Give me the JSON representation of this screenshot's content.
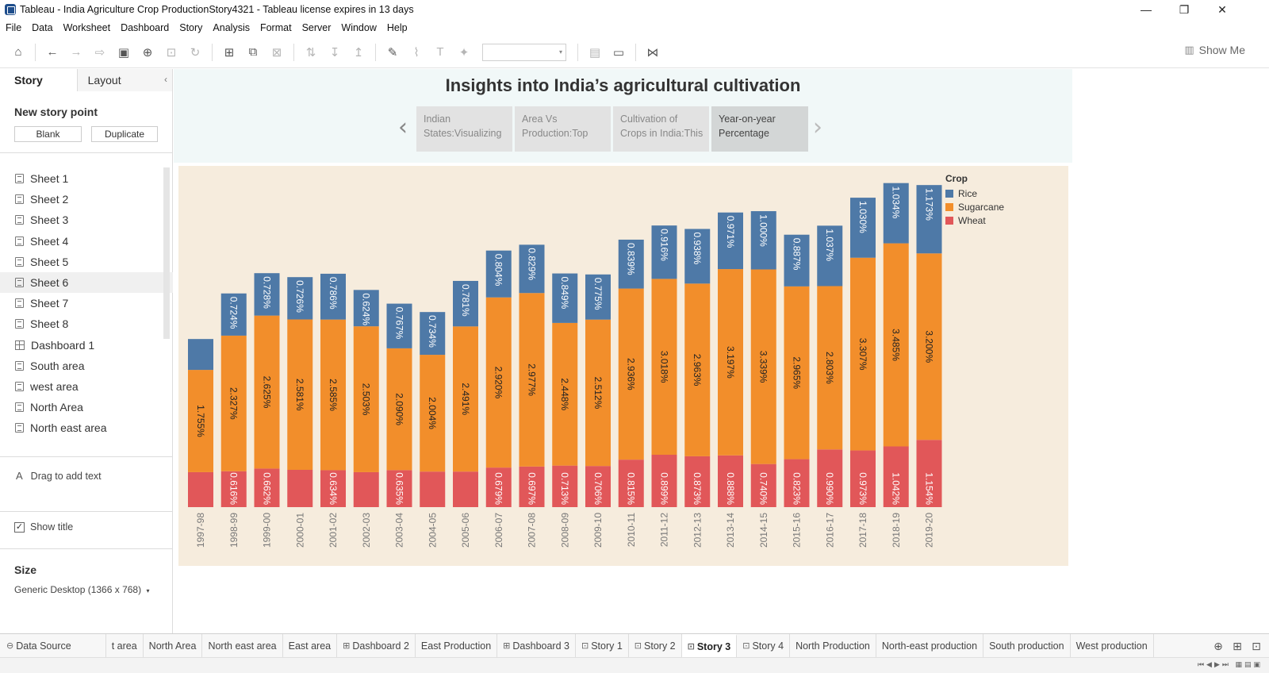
{
  "window": {
    "title": "Tableau - India Agriculture Crop ProductionStory4321 - Tableau license expires in 13 days",
    "minimize": "—",
    "restore": "❐",
    "close": "✕"
  },
  "menu": [
    "File",
    "Data",
    "Worksheet",
    "Dashboard",
    "Story",
    "Analysis",
    "Format",
    "Server",
    "Window",
    "Help"
  ],
  "toolbar": {
    "show_me": "Show Me"
  },
  "left_panel": {
    "tab_story": "Story",
    "tab_layout": "Layout",
    "new_story_point": "New story point",
    "blank_button": "Blank",
    "duplicate_button": "Duplicate",
    "sheets": [
      {
        "label": "Sheet 1",
        "type": "sheet"
      },
      {
        "label": "Sheet 2",
        "type": "sheet"
      },
      {
        "label": "Sheet 3",
        "type": "sheet"
      },
      {
        "label": "Sheet 4",
        "type": "sheet"
      },
      {
        "label": "Sheet 5",
        "type": "sheet"
      },
      {
        "label": "Sheet 6",
        "type": "sheet"
      },
      {
        "label": "Sheet 7",
        "type": "sheet"
      },
      {
        "label": "Sheet 8",
        "type": "sheet"
      },
      {
        "label": "Dashboard 1",
        "type": "dashboard"
      },
      {
        "label": "South area",
        "type": "sheet"
      },
      {
        "label": "west area",
        "type": "sheet"
      },
      {
        "label": "North Area",
        "type": "sheet"
      },
      {
        "label": "North east area",
        "type": "sheet"
      }
    ],
    "drag_text": "Drag to add text",
    "show_title": "Show title",
    "size_heading": "Size",
    "size_value": "Generic Desktop (1366 x 768)"
  },
  "story": {
    "title": "Insights into India’s agricultural cultivation",
    "points": [
      {
        "line1": "Indian",
        "line2": "States:Visualizing"
      },
      {
        "line1": "Area Vs",
        "line2": "Production:Top"
      },
      {
        "line1": "Cultivation of",
        "line2": "Crops in India:This"
      },
      {
        "line1": "Year-on-year",
        "line2": "Percentage"
      }
    ]
  },
  "chart_data": {
    "type": "bar",
    "stacked": true,
    "legend_title": "Crop",
    "legend_position": "top-right",
    "categories": [
      "1997-98",
      "1998-99",
      "1999-00",
      "2000-01",
      "2001-02",
      "2002-03",
      "2003-04",
      "2004-05",
      "2005-06",
      "2006-07",
      "2007-08",
      "2008-09",
      "2009-10",
      "2010-11",
      "2011-12",
      "2012-13",
      "2013-14",
      "2014-15",
      "2015-16",
      "2016-17",
      "2017-18",
      "2018-19",
      "2019-20"
    ],
    "series": [
      {
        "name": "Wheat",
        "color": "#e15759",
        "values": [
          0.6,
          0.616,
          0.662,
          0.64,
          0.634,
          0.6,
          0.635,
          0.61,
          0.61,
          0.679,
          0.697,
          0.713,
          0.706,
          0.815,
          0.899,
          0.873,
          0.888,
          0.74,
          0.823,
          0.99,
          0.973,
          1.042,
          1.154
        ],
        "labels": [
          "",
          "0.616%",
          "0.662%",
          "",
          "0.634%",
          "",
          "0.635%",
          "",
          "",
          "0.679%",
          "0.697%",
          "0.713%",
          "0.706%",
          "0.815%",
          "0.899%",
          "0.873%",
          "0.888%",
          "0.740%",
          "0.823%",
          "0.990%",
          "0.973%",
          "1.042%",
          "1.154%"
        ]
      },
      {
        "name": "Sugarcane",
        "color": "#f28e2b",
        "values": [
          1.755,
          2.327,
          2.625,
          2.581,
          2.585,
          2.503,
          2.09,
          2.004,
          2.491,
          2.92,
          2.977,
          2.448,
          2.512,
          2.936,
          3.018,
          2.963,
          3.197,
          3.339,
          2.965,
          2.803,
          3.307,
          3.485,
          3.2
        ],
        "labels": [
          "1.755%",
          "2.327%",
          "2.625%",
          "2.581%",
          "2.585%",
          "2.503%",
          "2.090%",
          "2.004%",
          "2.491%",
          "2.920%",
          "2.977%",
          "2.448%",
          "2.512%",
          "2.936%",
          "3.018%",
          "2.963%",
          "3.197%",
          "3.339%",
          "2.965%",
          "2.803%",
          "3.307%",
          "3.485%",
          "3.200%"
        ]
      },
      {
        "name": "Rice",
        "color": "#4e79a7",
        "values": [
          0.53,
          0.724,
          0.728,
          0.726,
          0.786,
          0.624,
          0.767,
          0.734,
          0.781,
          0.804,
          0.829,
          0.849,
          0.775,
          0.839,
          0.916,
          0.938,
          0.971,
          1.0,
          0.887,
          1.037,
          1.03,
          1.034,
          1.173
        ],
        "labels": [
          "",
          "0.724%",
          "0.728%",
          "0.726%",
          "0.786%",
          "0.624%",
          "0.767%",
          "0.734%",
          "0.781%",
          "0.804%",
          "0.829%",
          "0.849%",
          "0.775%",
          "0.839%",
          "0.916%",
          "0.938%",
          "0.971%",
          "1.000%",
          "0.887%",
          "1.037%",
          "1.030%",
          "1.034%",
          "1.173%"
        ]
      }
    ],
    "legend_order": [
      "Rice",
      "Sugarcane",
      "Wheat"
    ],
    "ylim": [
      0,
      5.72
    ],
    "grid": false
  },
  "bottom_tabs": [
    {
      "label": "Data Source",
      "icon": "database-icon"
    },
    {
      "label": "t area"
    },
    {
      "label": "North Area"
    },
    {
      "label": "North east area"
    },
    {
      "label": "East area"
    },
    {
      "label": "Dashboard 2",
      "icon": "dashboard-icon"
    },
    {
      "label": "East Production"
    },
    {
      "label": "Dashboard 3",
      "icon": "dashboard-icon"
    },
    {
      "label": "Story 1",
      "icon": "story-icon"
    },
    {
      "label": "Story 2",
      "icon": "story-icon"
    },
    {
      "label": "Story 3",
      "icon": "story-icon",
      "active": true
    },
    {
      "label": "Story 4",
      "icon": "story-icon"
    },
    {
      "label": "North Production"
    },
    {
      "label": "North-east production"
    },
    {
      "label": "South production"
    },
    {
      "label": "West production"
    }
  ]
}
